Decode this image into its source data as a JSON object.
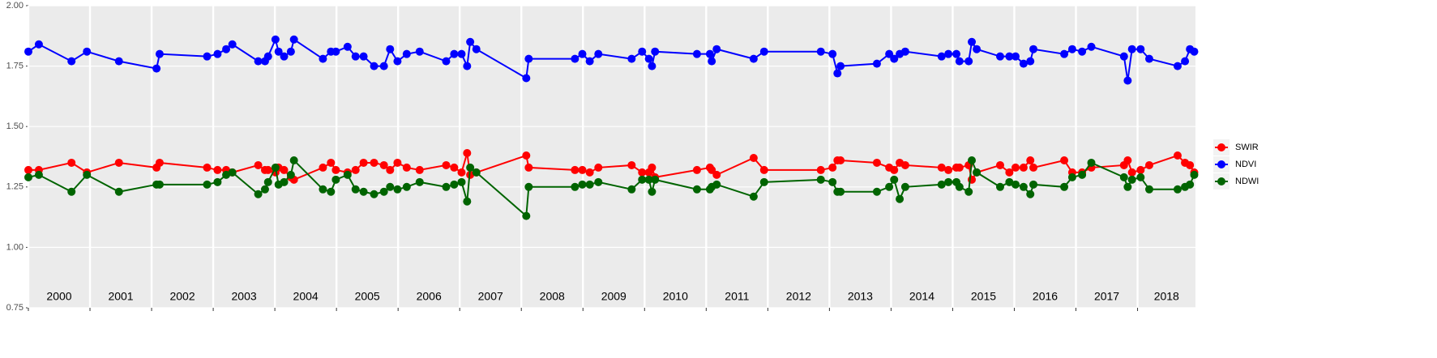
{
  "chart_data": {
    "type": "line",
    "x": [
      2000.0,
      2000.17,
      2000.7,
      2000.95,
      2001.47,
      2002.08,
      2002.13,
      2002.9,
      2003.07,
      2003.21,
      2003.31,
      2003.73,
      2003.84,
      2003.89,
      2004.01,
      2004.06,
      2004.15,
      2004.26,
      2004.31,
      2004.78,
      2004.91,
      2004.99,
      2005.18,
      2005.31,
      2005.44,
      2005.61,
      2005.77,
      2005.87,
      2005.99,
      2006.14,
      2006.35,
      2006.78,
      2006.91,
      2007.03,
      2007.12,
      2007.17,
      2007.27,
      2008.08,
      2008.12,
      2008.87,
      2008.99,
      2009.11,
      2009.25,
      2009.79,
      2009.96,
      2010.07,
      2010.12,
      2010.17,
      2010.85,
      2011.06,
      2011.09,
      2011.17,
      2011.77,
      2011.94,
      2012.86,
      2013.05,
      2013.13,
      2013.18,
      2013.77,
      2013.97,
      2014.05,
      2014.14,
      2014.23,
      2014.82,
      2014.93,
      2015.06,
      2015.11,
      2015.26,
      2015.31,
      2015.39,
      2015.77,
      2015.92,
      2016.02,
      2016.15,
      2016.26,
      2016.31,
      2016.81,
      2016.94,
      2017.1,
      2017.25,
      2017.78,
      2017.84,
      2017.91,
      2018.05,
      2018.19,
      2018.65,
      2018.77,
      2018.85,
      2018.92
    ],
    "series": [
      {
        "name": "SWIR",
        "color": "#ff0000",
        "values": [
          1.32,
          1.32,
          1.35,
          1.31,
          1.35,
          1.33,
          1.35,
          1.33,
          1.32,
          1.32,
          1.31,
          1.34,
          1.32,
          1.32,
          1.31,
          1.33,
          1.32,
          1.29,
          1.28,
          1.33,
          1.35,
          1.32,
          1.31,
          1.32,
          1.35,
          1.35,
          1.34,
          1.32,
          1.35,
          1.33,
          1.32,
          1.34,
          1.33,
          1.31,
          1.39,
          1.3,
          1.31,
          1.38,
          1.33,
          1.32,
          1.32,
          1.31,
          1.33,
          1.34,
          1.31,
          1.31,
          1.33,
          1.29,
          1.32,
          1.33,
          1.32,
          1.3,
          1.37,
          1.32,
          1.32,
          1.33,
          1.36,
          1.36,
          1.35,
          1.33,
          1.32,
          1.35,
          1.34,
          1.33,
          1.32,
          1.33,
          1.33,
          1.34,
          1.28,
          1.31,
          1.34,
          1.31,
          1.33,
          1.33,
          1.36,
          1.33,
          1.36,
          1.31,
          1.31,
          1.33,
          1.34,
          1.36,
          1.31,
          1.32,
          1.34,
          1.38,
          1.35,
          1.34,
          1.31
        ]
      },
      {
        "name": "NDVI",
        "color": "#0000ff",
        "values": [
          1.81,
          1.84,
          1.77,
          1.81,
          1.77,
          1.74,
          1.8,
          1.79,
          1.8,
          1.82,
          1.84,
          1.77,
          1.77,
          1.79,
          1.86,
          1.81,
          1.79,
          1.81,
          1.86,
          1.78,
          1.81,
          1.81,
          1.83,
          1.79,
          1.79,
          1.75,
          1.75,
          1.82,
          1.77,
          1.8,
          1.81,
          1.77,
          1.8,
          1.8,
          1.75,
          1.85,
          1.82,
          1.7,
          1.78,
          1.78,
          1.8,
          1.77,
          1.8,
          1.78,
          1.81,
          1.78,
          1.75,
          1.81,
          1.8,
          1.8,
          1.77,
          1.82,
          1.78,
          1.81,
          1.81,
          1.8,
          1.72,
          1.75,
          1.76,
          1.8,
          1.78,
          1.8,
          1.81,
          1.79,
          1.8,
          1.8,
          1.77,
          1.77,
          1.85,
          1.82,
          1.79,
          1.79,
          1.79,
          1.76,
          1.77,
          1.82,
          1.8,
          1.82,
          1.81,
          1.83,
          1.79,
          1.69,
          1.82,
          1.82,
          1.78,
          1.75,
          1.77,
          1.82,
          1.81
        ]
      },
      {
        "name": "NDWI",
        "color": "#006400",
        "values": [
          1.29,
          1.3,
          1.23,
          1.3,
          1.23,
          1.26,
          1.26,
          1.26,
          1.27,
          1.3,
          1.31,
          1.22,
          1.24,
          1.27,
          1.33,
          1.26,
          1.27,
          1.3,
          1.36,
          1.24,
          1.23,
          1.28,
          1.3,
          1.24,
          1.23,
          1.22,
          1.23,
          1.25,
          1.24,
          1.25,
          1.27,
          1.25,
          1.26,
          1.27,
          1.19,
          1.33,
          1.31,
          1.13,
          1.25,
          1.25,
          1.26,
          1.26,
          1.27,
          1.24,
          1.28,
          1.28,
          1.23,
          1.28,
          1.24,
          1.24,
          1.25,
          1.26,
          1.21,
          1.27,
          1.28,
          1.27,
          1.23,
          1.23,
          1.23,
          1.25,
          1.28,
          1.2,
          1.25,
          1.26,
          1.27,
          1.27,
          1.25,
          1.23,
          1.36,
          1.31,
          1.25,
          1.27,
          1.26,
          1.25,
          1.22,
          1.26,
          1.25,
          1.29,
          1.3,
          1.35,
          1.29,
          1.25,
          1.28,
          1.29,
          1.24,
          1.24,
          1.25,
          1.26,
          1.3
        ]
      }
    ],
    "xlim": [
      2000,
      2018.94
    ],
    "xticks": [
      2000,
      2001,
      2002,
      2003,
      2004,
      2005,
      2006,
      2007,
      2008,
      2009,
      2010,
      2011,
      2012,
      2013,
      2014,
      2015,
      2016,
      2017,
      2018
    ],
    "ylim": [
      0.75,
      2.0
    ],
    "yticks": [
      0.75,
      {
        "value": 1.0,
        "label": "1.00"
      },
      1.25,
      {
        "value": 1.5,
        "label": "1.50"
      },
      1.75,
      {
        "value": 2.0,
        "label": "2.00"
      }
    ],
    "grid": true,
    "legend_position": "right"
  }
}
